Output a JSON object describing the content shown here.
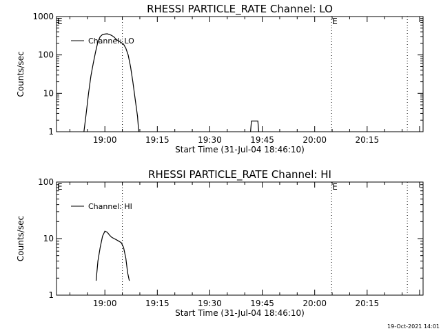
{
  "chart_data": [
    {
      "type": "line",
      "title": "RHESSI PARTICLE_RATE Channel: LO",
      "xlabel": "Start Time (31-Jul-04 18:46:10)",
      "ylabel": "Counts/sec",
      "yscale": "log",
      "ylim": [
        1,
        1000
      ],
      "xlim": [
        "18:46:10",
        "20:31:00"
      ],
      "yticks": [
        "1",
        "10",
        "100",
        "1000"
      ],
      "xticks": [
        "19:00",
        "19:15",
        "19:30",
        "19:45",
        "20:00",
        "20:15"
      ],
      "legend": "upper-left",
      "grid": false,
      "series": [
        {
          "name": "Channel: LO",
          "points": [
            [
              "18:54:00",
              1
            ],
            [
              "18:54:40",
              3
            ],
            [
              "18:55:20",
              10
            ],
            [
              "18:56:00",
              28
            ],
            [
              "18:56:40",
              60
            ],
            [
              "18:57:20",
              120
            ],
            [
              "18:58:00",
              220
            ],
            [
              "18:58:40",
              300
            ],
            [
              "18:59:20",
              340
            ],
            [
              "19:00:00",
              350
            ],
            [
              "19:00:40",
              355
            ],
            [
              "19:01:20",
              340
            ],
            [
              "19:02:00",
              320
            ],
            [
              "19:02:40",
              290
            ],
            [
              "19:03:20",
              250
            ],
            [
              "19:04:00",
              230
            ],
            [
              "19:04:40",
              210
            ],
            [
              "19:05:20",
              190
            ],
            [
              "19:06:00",
              150
            ],
            [
              "19:06:40",
              100
            ],
            [
              "19:07:20",
              50
            ],
            [
              "19:08:00",
              20
            ],
            [
              "19:08:40",
              7
            ],
            [
              "19:09:20",
              2.5
            ],
            [
              "19:09:40",
              1
            ]
          ]
        },
        {
          "name": "Channel: LO",
          "points": [
            [
              "19:41:40",
              1
            ],
            [
              "19:41:55",
              1.9
            ],
            [
              "19:43:45",
              1.9
            ],
            [
              "19:44:00",
              1
            ]
          ]
        }
      ],
      "vlines": [
        {
          "x": "19:05:00",
          "style": "dotted"
        },
        {
          "x": "20:04:50",
          "style": "dotted",
          "label": "E"
        },
        {
          "x": "20:26:30",
          "style": "dotted"
        }
      ],
      "corner_mark": "E"
    },
    {
      "type": "line",
      "title": "RHESSI PARTICLE_RATE Channel: HI",
      "xlabel": "Start Time (31-Jul-04 18:46:10)",
      "ylabel": "Counts/sec",
      "yscale": "log",
      "ylim": [
        1,
        100
      ],
      "xlim": [
        "18:46:10",
        "20:31:00"
      ],
      "yticks": [
        "1",
        "10",
        "100"
      ],
      "xticks": [
        "19:00",
        "19:15",
        "19:30",
        "19:45",
        "20:00",
        "20:15"
      ],
      "legend": "upper-left",
      "grid": false,
      "series": [
        {
          "name": "Channel: HI",
          "points": [
            [
              "18:57:30",
              1.8
            ],
            [
              "18:58:00",
              4
            ],
            [
              "18:58:40",
              7
            ],
            [
              "18:59:20",
              11
            ],
            [
              "19:00:00",
              13.5
            ],
            [
              "19:00:40",
              13
            ],
            [
              "19:01:20",
              11.5
            ],
            [
              "19:02:00",
              10.5
            ],
            [
              "19:02:40",
              10
            ],
            [
              "19:03:20",
              9.5
            ],
            [
              "19:04:00",
              9
            ],
            [
              "19:04:40",
              8.5
            ],
            [
              "19:05:20",
              7
            ],
            [
              "19:06:00",
              4.5
            ],
            [
              "19:06:30",
              2.5
            ],
            [
              "19:07:00",
              1.8
            ]
          ]
        }
      ],
      "vlines": [
        {
          "x": "19:05:00",
          "style": "dotted"
        },
        {
          "x": "20:04:50",
          "style": "dotted",
          "label": "E"
        },
        {
          "x": "20:26:30",
          "style": "dotted"
        }
      ],
      "corner_mark": "E"
    }
  ],
  "footer": {
    "stamp": "19-Oct-2021 14:01"
  }
}
